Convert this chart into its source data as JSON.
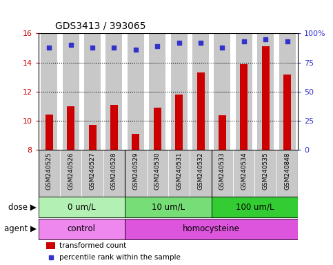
{
  "title": "GDS3413 / 393065",
  "samples": [
    "GSM240525",
    "GSM240526",
    "GSM240527",
    "GSM240528",
    "GSM240529",
    "GSM240530",
    "GSM240531",
    "GSM240532",
    "GSM240533",
    "GSM240534",
    "GSM240535",
    "GSM240848"
  ],
  "red_values": [
    10.45,
    11.0,
    9.7,
    11.1,
    9.1,
    10.9,
    11.8,
    13.3,
    10.4,
    13.9,
    15.1,
    13.2
  ],
  "blue_pct": [
    88,
    90,
    88,
    88,
    86,
    89,
    92,
    92,
    88,
    93,
    95,
    93
  ],
  "ylim_left": [
    8,
    16
  ],
  "ylim_right": [
    0,
    100
  ],
  "yticks_left": [
    8,
    10,
    12,
    14,
    16
  ],
  "yticks_right": [
    0,
    25,
    50,
    75,
    100
  ],
  "ytick_right_labels": [
    "0",
    "25",
    "50",
    "75",
    "100%"
  ],
  "red_color": "#cc0000",
  "blue_color": "#3333cc",
  "bar_bg_color": "#c8c8c8",
  "dose_groups": [
    {
      "label": "0 um/L",
      "start": 0,
      "end": 4,
      "color": "#b3f0b3"
    },
    {
      "label": "10 um/L",
      "start": 4,
      "end": 8,
      "color": "#77dd77"
    },
    {
      "label": "100 um/L",
      "start": 8,
      "end": 12,
      "color": "#33cc33"
    }
  ],
  "agent_groups": [
    {
      "label": "control",
      "start": 0,
      "end": 4,
      "color": "#ee88ee"
    },
    {
      "label": "homocysteine",
      "start": 4,
      "end": 12,
      "color": "#dd55dd"
    }
  ],
  "legend_red": "transformed count",
  "legend_blue": "percentile rank within the sample",
  "title_fontsize": 10,
  "tick_fontsize": 8,
  "label_fontsize": 8.5,
  "legend_fontsize": 7.5,
  "sample_fontsize": 6.5
}
